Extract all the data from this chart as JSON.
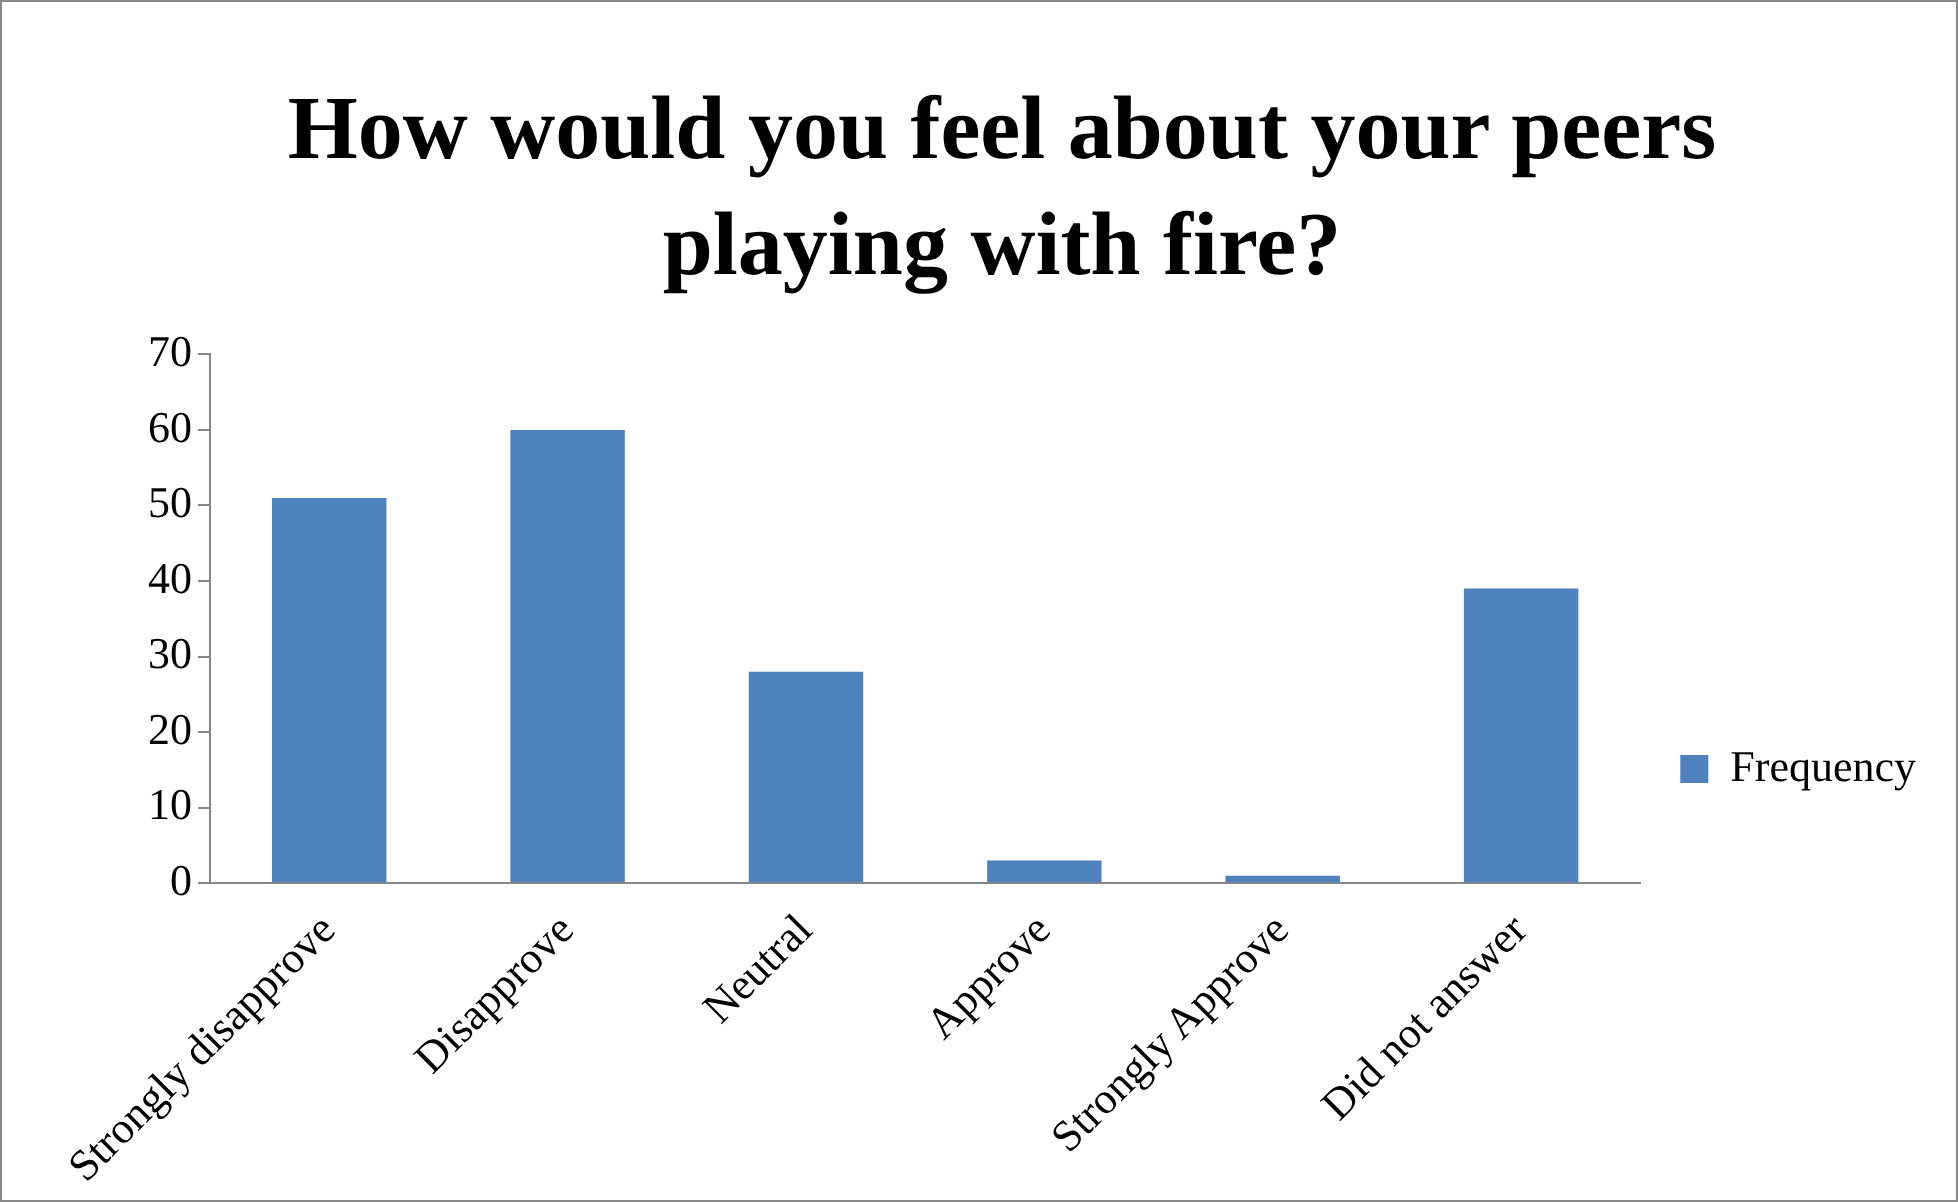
{
  "chart_data": {
    "type": "bar",
    "title": "How would you feel about your peers playing with fire?",
    "categories": [
      "Strongly disapprove",
      "Disapprove",
      "Neutral",
      "Approve",
      "Strongly Approve",
      "Did not answer"
    ],
    "series": [
      {
        "name": "Frequency",
        "color": "#4f81bd",
        "values": [
          51,
          60,
          28,
          3,
          1,
          39
        ]
      }
    ],
    "ylim": [
      0,
      70
    ],
    "yticks": [
      0,
      10,
      20,
      30,
      40,
      50,
      60,
      70
    ],
    "grid": false,
    "legend": "right"
  }
}
